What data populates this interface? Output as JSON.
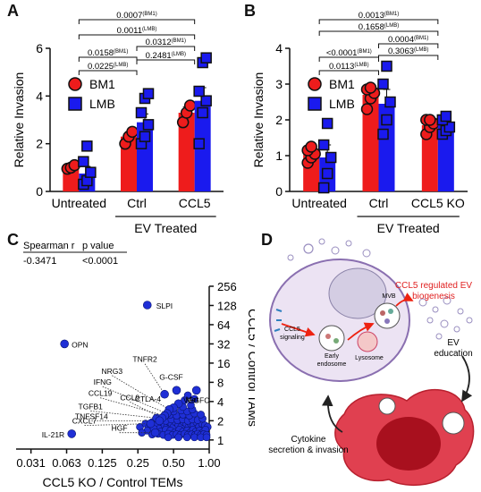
{
  "panel_labels": {
    "a": "A",
    "b": "B",
    "c": "C",
    "d": "D"
  },
  "chart_data": [
    {
      "type": "bar",
      "panel": "A",
      "ylabel": "Relative Invasion",
      "ylim": [
        0,
        6
      ],
      "yticks": [
        0,
        2,
        4,
        6
      ],
      "groups": [
        "Untreated",
        "Ctrl",
        "CCL5"
      ],
      "group_caption": "EV Treated",
      "legend": [
        {
          "name": "BM1",
          "color": "#ee1c1c"
        },
        {
          "name": "LMB",
          "color": "#1a1aee"
        }
      ],
      "series": [
        {
          "name": "BM1",
          "values": [
            1.0,
            2.3,
            3.3
          ],
          "points": [
            [
              0.95,
              1.0,
              1.1
            ],
            [
              2.0,
              2.3,
              2.5
            ],
            [
              2.9,
              3.3,
              3.6
            ]
          ],
          "errors": [
            0.06,
            0.2,
            0.25
          ]
        },
        {
          "name": "LMB",
          "values": [
            0.75,
            2.9,
            3.8
          ],
          "points": [
            [
              0.3,
              0.45,
              0.8,
              1.25,
              1.9
            ],
            [
              2.0,
              2.3,
              2.8,
              3.3,
              3.9,
              4.1
            ],
            [
              2.0,
              3.3,
              3.8,
              4.2,
              5.4,
              5.6
            ]
          ],
          "errors": [
            0.3,
            0.35,
            0.55
          ]
        }
      ],
      "comparisons": [
        {
          "label": "0.0007",
          "sup": "(BM1)"
        },
        {
          "label": "0.0011",
          "sup": "(LMB)"
        },
        {
          "label": "0.0158",
          "sup": "(BM1)"
        },
        {
          "label": "0.0225",
          "sup": "(LMB)"
        },
        {
          "label": "0.0312",
          "sup": "(BM1)"
        },
        {
          "label": "0.2481",
          "sup": "(LMB)"
        }
      ]
    },
    {
      "type": "bar",
      "panel": "B",
      "ylabel": "Relative Invasion",
      "ylim": [
        0,
        4
      ],
      "yticks": [
        0,
        1,
        2,
        3,
        4
      ],
      "groups": [
        "Untreated",
        "Ctrl",
        "CCL5 KO"
      ],
      "group_caption": "EV Treated",
      "legend": [
        {
          "name": "BM1",
          "color": "#ee1c1c"
        },
        {
          "name": "LMB",
          "color": "#1a1aee"
        }
      ],
      "series": [
        {
          "name": "BM1",
          "values": [
            1.05,
            2.7,
            1.85
          ],
          "points": [
            [
              0.8,
              0.95,
              1.05,
              1.15,
              1.25
            ],
            [
              2.3,
              2.6,
              2.75,
              2.85,
              2.9
            ],
            [
              1.6,
              1.8,
              1.9,
              2.0,
              2.0
            ]
          ],
          "errors": [
            0.1,
            0.15,
            0.1
          ]
        },
        {
          "name": "LMB",
          "values": [
            0.95,
            2.45,
            1.85
          ],
          "points": [
            [
              0.1,
              0.5,
              0.95,
              1.3,
              1.9
            ],
            [
              1.6,
              2.0,
              2.5,
              3.0,
              3.5
            ],
            [
              1.6,
              1.7,
              1.8,
              2.0,
              2.1
            ]
          ],
          "errors": [
            0.35,
            0.4,
            0.15
          ]
        }
      ],
      "comparisons": [
        {
          "label": "0.0013",
          "sup": "(BM1)"
        },
        {
          "label": "0.1658",
          "sup": "(LMB)"
        },
        {
          "label": "0.0004",
          "sup": "(BM1)"
        },
        {
          "label": "0.3063",
          "sup": "(LMB)"
        },
        {
          "label": "<0.0001",
          "sup": "(BM1)"
        },
        {
          "label": "0.0113",
          "sup": "(LMB)"
        }
      ]
    },
    {
      "type": "scatter",
      "panel": "C",
      "xlabel": "CCL5 KO / Control TEMs",
      "ylabel": "CCL5 / Control TAMs",
      "xscale": "log2",
      "yscale": "log2",
      "xticks": [
        "0.031",
        "0.063",
        "0.125",
        "0.25",
        "0.50",
        "1.00"
      ],
      "yticks": [
        "1",
        "2",
        "4",
        "8",
        "16",
        "32",
        "64",
        "128",
        "256"
      ],
      "stats": {
        "header_r": "Spearman r",
        "header_p": "p value",
        "r": "-0.3471",
        "p": "<0.0001"
      },
      "point_color": "#1f2fd6",
      "labeled_points": [
        {
          "label": "SLPI",
          "x": 0.3,
          "y": 130
        },
        {
          "label": "OPN",
          "x": 0.06,
          "y": 32
        },
        {
          "label": "IL-21R",
          "x": 0.069,
          "y": 1.25
        },
        {
          "label": "G-CSF",
          "x": 0.53,
          "y": 6
        },
        {
          "label": "VEGFC",
          "x": 0.78,
          "y": 6
        },
        {
          "label": "Met",
          "x": 0.55,
          "y": 3.7
        },
        {
          "label": "TNFR2",
          "x": 0.42,
          "y": 5.2
        },
        {
          "label": "CTLA-4",
          "x": 0.5,
          "y": 3.2
        },
        {
          "label": "NRG3",
          "x": 0.46,
          "y": 3.0
        },
        {
          "label": "IFNG",
          "x": 0.44,
          "y": 2.6
        },
        {
          "label": "CCL19",
          "x": 0.42,
          "y": 2.4
        },
        {
          "label": "TGFB1",
          "x": 0.36,
          "y": 2.2
        },
        {
          "label": "CCL9",
          "x": 0.4,
          "y": 2.2
        },
        {
          "label": "TNFSF14",
          "x": 0.38,
          "y": 2.0
        },
        {
          "label": "CXCL7",
          "x": 0.32,
          "y": 1.8
        },
        {
          "label": "HGF",
          "x": 0.35,
          "y": 1.3
        }
      ],
      "other_points": [
        [
          0.26,
          1.6
        ],
        [
          0.29,
          1.8
        ],
        [
          0.31,
          1.6
        ],
        [
          0.33,
          1.9
        ],
        [
          0.36,
          1.7
        ],
        [
          0.38,
          1.5
        ],
        [
          0.4,
          1.9
        ],
        [
          0.42,
          1.7
        ],
        [
          0.44,
          1.6
        ],
        [
          0.46,
          1.9
        ],
        [
          0.48,
          1.8
        ],
        [
          0.5,
          1.6
        ],
        [
          0.52,
          1.9
        ],
        [
          0.55,
          1.7
        ],
        [
          0.58,
          1.6
        ],
        [
          0.61,
          1.9
        ],
        [
          0.64,
          1.8
        ],
        [
          0.67,
          1.6
        ],
        [
          0.7,
          1.8
        ],
        [
          0.74,
          1.7
        ],
        [
          0.78,
          1.9
        ],
        [
          0.82,
          1.6
        ],
        [
          0.87,
          1.8
        ],
        [
          0.92,
          1.7
        ],
        [
          0.97,
          1.6
        ],
        [
          0.3,
          1.4
        ],
        [
          0.34,
          1.5
        ],
        [
          0.39,
          1.35
        ],
        [
          0.43,
          1.45
        ],
        [
          0.47,
          1.4
        ],
        [
          0.51,
          1.3
        ],
        [
          0.56,
          1.45
        ],
        [
          0.6,
          1.35
        ],
        [
          0.65,
          1.4
        ],
        [
          0.69,
          1.3
        ],
        [
          0.73,
          1.45
        ],
        [
          0.77,
          1.35
        ],
        [
          0.83,
          1.4
        ],
        [
          0.88,
          1.3
        ],
        [
          0.93,
          1.45
        ],
        [
          0.33,
          1.22
        ],
        [
          0.37,
          1.25
        ],
        [
          0.41,
          1.2
        ],
        [
          0.45,
          1.25
        ],
        [
          0.49,
          1.2
        ],
        [
          0.53,
          1.23
        ],
        [
          0.57,
          1.2
        ],
        [
          0.62,
          1.25
        ],
        [
          0.66,
          1.2
        ],
        [
          0.71,
          1.22
        ],
        [
          0.76,
          1.2
        ],
        [
          0.8,
          1.25
        ],
        [
          0.85,
          1.2
        ],
        [
          0.9,
          1.23
        ],
        [
          0.95,
          1.2
        ],
        [
          0.37,
          2.1
        ],
        [
          0.43,
          2.0
        ],
        [
          0.48,
          2.1
        ],
        [
          0.54,
          2.05
        ],
        [
          0.6,
          2.1
        ],
        [
          0.66,
          2.0
        ],
        [
          0.72,
          2.1
        ],
        [
          0.8,
          2.05
        ],
        [
          0.88,
          2.15
        ],
        [
          0.47,
          2.5
        ],
        [
          0.53,
          2.4
        ],
        [
          0.6,
          2.5
        ],
        [
          0.68,
          2.4
        ],
        [
          0.75,
          2.6
        ],
        [
          0.85,
          2.5
        ],
        [
          0.5,
          2.8
        ],
        [
          0.58,
          2.9
        ],
        [
          0.65,
          2.8
        ],
        [
          0.72,
          3.0
        ],
        [
          0.6,
          3.3
        ],
        [
          0.7,
          3.5
        ],
        [
          0.62,
          4.2
        ],
        [
          0.75,
          4.4
        ],
        [
          0.66,
          5.0
        ],
        [
          0.27,
          1.3
        ],
        [
          0.45,
          1.1
        ],
        [
          0.55,
          1.1
        ],
        [
          0.65,
          1.1
        ],
        [
          0.75,
          1.1
        ],
        [
          0.85,
          1.1
        ],
        [
          0.95,
          1.1
        ]
      ]
    }
  ],
  "panel_d": {
    "ccl5_regulated": "CCL5 regulated EV biogenesis",
    "mvb": "MVB",
    "ccl5_signaling": "CCL5 signaling",
    "early_endosome": "Early endosome",
    "lysosome": "Lysosome",
    "ev_education": "EV education",
    "cytokine": "Cytokine secretion & invasion"
  }
}
